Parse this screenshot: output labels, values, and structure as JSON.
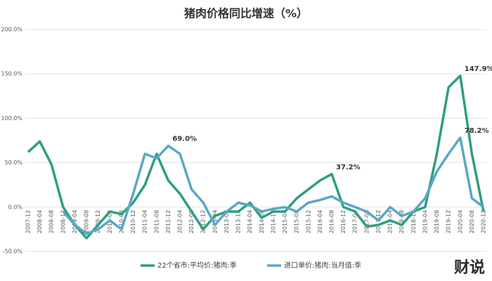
{
  "chart_data": {
    "type": "line",
    "title": "猪肉价格同比增速（%）",
    "categories": [
      "2007-12",
      "2008-04",
      "2008-08",
      "2008-12",
      "2009-04",
      "2009-08",
      "2009-12",
      "2010-04",
      "2010-08",
      "2010-12",
      "2011-04",
      "2011-08",
      "2011-12",
      "2012-04",
      "2012-08",
      "2012-12",
      "2013-04",
      "2013-08",
      "2013-12",
      "2014-04",
      "2014-08",
      "2014-12",
      "2015-04",
      "2015-08",
      "2015-12",
      "2016-04",
      "2016-08",
      "2016-12",
      "2017-04",
      "2017-08",
      "2017-12",
      "2018-04",
      "2018-08",
      "2018-12",
      "2019-04",
      "2019-08",
      "2019-12",
      "2020-04",
      "2020-08",
      "2020-12"
    ],
    "series": [
      {
        "name": "22个省市:平均价:猪肉:季",
        "color": "#2e9e80",
        "values": [
          62,
          74,
          48,
          0,
          -20,
          -35,
          -20,
          -5,
          -8,
          5,
          25,
          60,
          30,
          15,
          -5,
          -25,
          -10,
          -5,
          -5,
          5,
          -12,
          -5,
          -5,
          10,
          20,
          30,
          37.2,
          0,
          -5,
          -22,
          -20,
          -15,
          -20,
          -5,
          0,
          60,
          135,
          147.9,
          60,
          -5
        ],
        "value_labels": [
          null,
          null,
          null,
          null,
          null,
          null,
          null,
          null,
          null,
          null,
          null,
          null,
          null,
          null,
          null,
          null,
          null,
          null,
          null,
          null,
          null,
          null,
          null,
          null,
          null,
          null,
          "37.2%",
          null,
          null,
          null,
          null,
          null,
          null,
          null,
          null,
          null,
          null,
          "147.9%",
          null,
          null
        ]
      },
      {
        "name": "进口单价:猪肉:当月值:季",
        "color": "#5ba7c5",
        "values": [
          null,
          null,
          null,
          -5,
          -20,
          -30,
          -25,
          -15,
          -25,
          15,
          60,
          55,
          69,
          60,
          20,
          5,
          -20,
          -5,
          5,
          2,
          -5,
          -2,
          0,
          -5,
          5,
          8,
          12,
          5,
          0,
          -5,
          -15,
          0,
          -10,
          -5,
          10,
          40,
          60,
          78.2,
          10,
          0
        ],
        "value_labels": [
          null,
          null,
          null,
          null,
          null,
          null,
          null,
          null,
          null,
          null,
          null,
          null,
          "69.0%",
          null,
          null,
          null,
          null,
          null,
          null,
          null,
          null,
          null,
          null,
          null,
          null,
          null,
          null,
          null,
          null,
          null,
          null,
          null,
          null,
          null,
          null,
          null,
          null,
          "78.2%",
          null,
          null
        ]
      }
    ],
    "ylim": [
      -50,
      200
    ],
    "yticks": [
      {
        "value": -50,
        "label": "-50.0%"
      },
      {
        "value": 0,
        "label": "0.0%"
      },
      {
        "value": 50,
        "label": "50.0%"
      },
      {
        "value": 100,
        "label": "100.0%"
      },
      {
        "value": 150,
        "label": "150.0%"
      },
      {
        "value": 200,
        "label": "200.0%"
      }
    ],
    "grid": true,
    "logo": "财说"
  }
}
